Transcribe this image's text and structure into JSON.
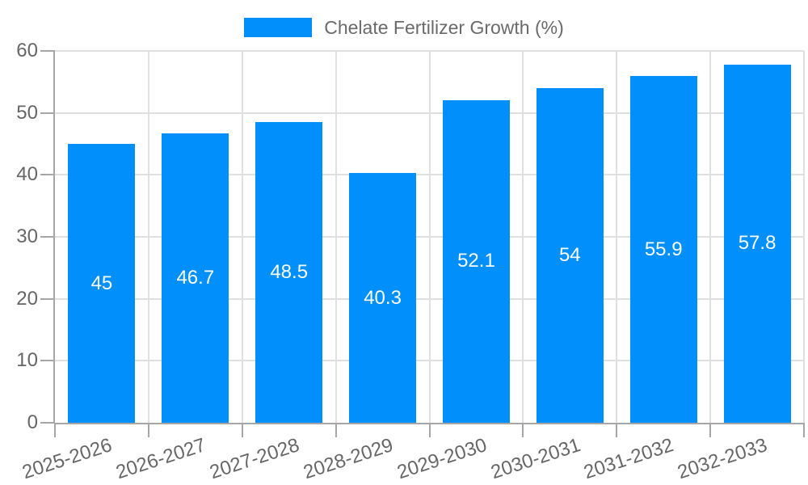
{
  "legend": {
    "label": "Chelate Fertilizer Growth (%)"
  },
  "colors": {
    "bar": "#008FFB",
    "grid": "#e0e0e0",
    "axis": "#a6a6a6",
    "tick_label": "#666666",
    "legend_text": "#6a6a6a",
    "value_label": "#ffffff",
    "background": "#ffffff"
  },
  "chart_data": {
    "type": "bar",
    "title": "Chelate Fertilizer Growth (%)",
    "categories": [
      "2025-2026",
      "2026-2027",
      "2027-2028",
      "2028-2029",
      "2029-2030",
      "2030-2031",
      "2031-2032",
      "2032-2033"
    ],
    "series": [
      {
        "name": "Chelate Fertilizer Growth (%)",
        "values": [
          45,
          46.7,
          48.5,
          40.3,
          52.1,
          54,
          55.9,
          57.8
        ]
      }
    ],
    "value_labels": [
      "45",
      "46.7",
      "48.5",
      "40.3",
      "52.1",
      "54",
      "55.9",
      "57.8"
    ],
    "xlabel": "",
    "ylabel": "",
    "ylim": [
      0,
      60
    ],
    "yticks": [
      0,
      10,
      20,
      30,
      40,
      50,
      60
    ],
    "grid": true,
    "legend_position": "top",
    "value_label_position": "inside-center"
  }
}
